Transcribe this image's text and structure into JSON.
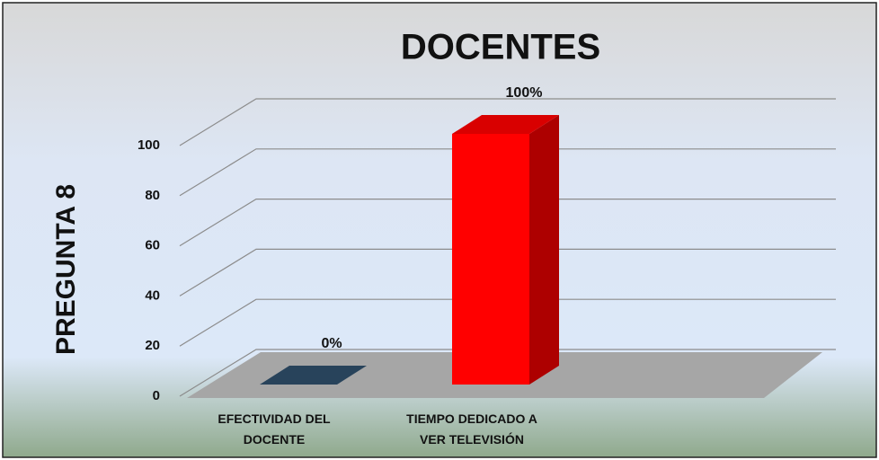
{
  "chart_data": {
    "type": "bar3d",
    "title": "DOCENTES",
    "y_label": "PREGUNTA 8",
    "categories": [
      "EFECTIVIDAD DEL DOCENTE",
      "TIEMPO DEDICADO A VER TELEVISIÓN"
    ],
    "values": [
      0,
      100
    ],
    "value_labels": [
      "0%",
      "100%"
    ],
    "colors": [
      "#2f4f6b",
      "#ff0000"
    ],
    "ylim": [
      0,
      100
    ],
    "yticks": [
      0,
      20,
      40,
      60,
      80,
      100
    ],
    "grid": true
  }
}
